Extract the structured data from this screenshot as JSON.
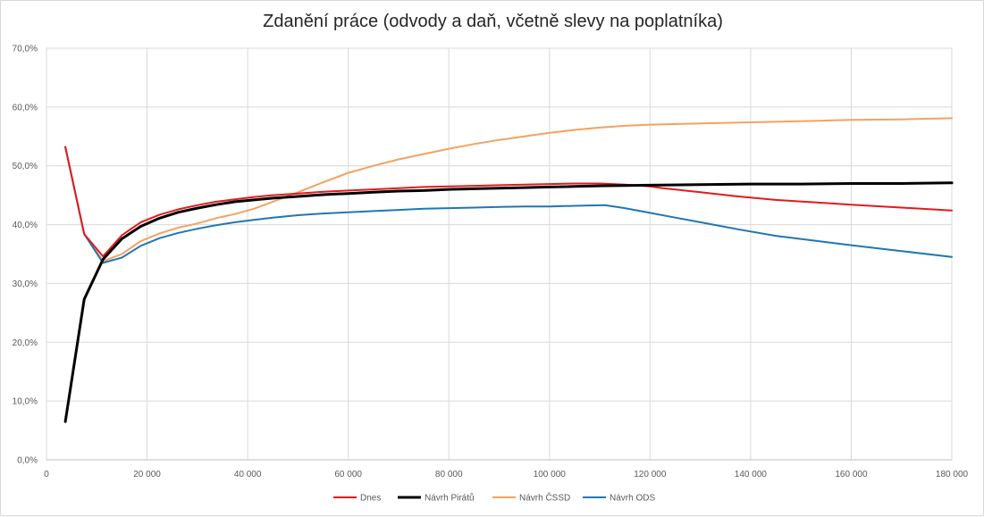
{
  "chart_data": {
    "type": "line",
    "title": "Zdanění práce (odvody a daň, včetně slevy na poplatníka)",
    "xlabel": "",
    "ylabel": "",
    "xlim": [
      0,
      180000
    ],
    "ylim": [
      0,
      70
    ],
    "x_ticks": [
      0,
      20000,
      40000,
      60000,
      80000,
      100000,
      120000,
      140000,
      160000,
      180000
    ],
    "x_tick_labels": [
      "0",
      "20 000",
      "40 000",
      "60 000",
      "80 000",
      "100 000",
      "120 000",
      "140 000",
      "160 000",
      "180 000"
    ],
    "y_ticks": [
      0,
      10,
      20,
      30,
      40,
      50,
      60,
      70
    ],
    "y_tick_labels": [
      "0,0%",
      "10,0%",
      "20,0%",
      "30,0%",
      "40,0%",
      "50,0%",
      "60,0%",
      "70,0%"
    ],
    "grid": "both",
    "legend_position": "bottom",
    "series": [
      {
        "name": "Dnes",
        "color": "#e31a1c",
        "points": [
          [
            3750,
            53.2
          ],
          [
            7500,
            38.4
          ],
          [
            11250,
            34.6
          ],
          [
            15000,
            38.2
          ],
          [
            18750,
            40.4
          ],
          [
            22500,
            41.7
          ],
          [
            26250,
            42.6
          ],
          [
            30000,
            43.3
          ],
          [
            33750,
            43.9
          ],
          [
            37500,
            44.3
          ],
          [
            41250,
            44.7
          ],
          [
            45000,
            45.0
          ],
          [
            50000,
            45.3
          ],
          [
            55000,
            45.6
          ],
          [
            60000,
            45.8
          ],
          [
            65000,
            46.0
          ],
          [
            70000,
            46.2
          ],
          [
            75000,
            46.4
          ],
          [
            80000,
            46.5
          ],
          [
            85000,
            46.6
          ],
          [
            90000,
            46.7
          ],
          [
            95000,
            46.8
          ],
          [
            100000,
            46.9
          ],
          [
            105000,
            47.0
          ],
          [
            110000,
            47.0
          ],
          [
            115000,
            46.8
          ],
          [
            120000,
            46.5
          ],
          [
            122500,
            46.2
          ],
          [
            130000,
            45.5
          ],
          [
            137500,
            44.8
          ],
          [
            145000,
            44.2
          ],
          [
            152500,
            43.8
          ],
          [
            160000,
            43.4
          ],
          [
            170000,
            42.9
          ],
          [
            180000,
            42.4
          ]
        ]
      },
      {
        "name": "Návrh Pirátů",
        "color": "#000000",
        "points": [
          [
            3750,
            6.5
          ],
          [
            7500,
            27.3
          ],
          [
            11250,
            34.1
          ],
          [
            15000,
            37.6
          ],
          [
            18750,
            39.7
          ],
          [
            22500,
            41.1
          ],
          [
            26250,
            42.1
          ],
          [
            30000,
            42.8
          ],
          [
            33750,
            43.4
          ],
          [
            37500,
            43.9
          ],
          [
            41250,
            44.2
          ],
          [
            45000,
            44.5
          ],
          [
            50000,
            44.8
          ],
          [
            55000,
            45.1
          ],
          [
            60000,
            45.3
          ],
          [
            65000,
            45.5
          ],
          [
            70000,
            45.7
          ],
          [
            75000,
            45.8
          ],
          [
            80000,
            46.0
          ],
          [
            85000,
            46.1
          ],
          [
            90000,
            46.2
          ],
          [
            95000,
            46.3
          ],
          [
            100000,
            46.4
          ],
          [
            105000,
            46.5
          ],
          [
            110000,
            46.6
          ],
          [
            120000,
            46.7
          ],
          [
            130000,
            46.8
          ],
          [
            140000,
            46.9
          ],
          [
            150000,
            46.9
          ],
          [
            160000,
            47.0
          ],
          [
            170000,
            47.0
          ],
          [
            180000,
            47.1
          ]
        ]
      },
      {
        "name": "Návrh ČSSD",
        "color": "#f4a261",
        "points": [
          [
            3750,
            53.2
          ],
          [
            7500,
            38.4
          ],
          [
            11250,
            33.8
          ],
          [
            15000,
            35.0
          ],
          [
            18750,
            37.2
          ],
          [
            22500,
            38.5
          ],
          [
            26250,
            39.5
          ],
          [
            30000,
            40.2
          ],
          [
            33750,
            41.1
          ],
          [
            37500,
            41.8
          ],
          [
            41250,
            42.7
          ],
          [
            45000,
            43.9
          ],
          [
            50000,
            45.5
          ],
          [
            55000,
            47.2
          ],
          [
            60000,
            48.8
          ],
          [
            65000,
            50.0
          ],
          [
            70000,
            51.1
          ],
          [
            75000,
            52.0
          ],
          [
            80000,
            52.9
          ],
          [
            85000,
            53.7
          ],
          [
            90000,
            54.4
          ],
          [
            95000,
            55.0
          ],
          [
            100000,
            55.6
          ],
          [
            105000,
            56.1
          ],
          [
            110000,
            56.5
          ],
          [
            115000,
            56.8
          ],
          [
            120000,
            57.0
          ],
          [
            130000,
            57.2
          ],
          [
            140000,
            57.4
          ],
          [
            150000,
            57.6
          ],
          [
            160000,
            57.8
          ],
          [
            170000,
            57.9
          ],
          [
            180000,
            58.1
          ]
        ]
      },
      {
        "name": "Návrh ODS",
        "color": "#1f77b4",
        "points": [
          [
            3750,
            53.2
          ],
          [
            7500,
            38.4
          ],
          [
            11250,
            33.5
          ],
          [
            15000,
            34.4
          ],
          [
            18750,
            36.4
          ],
          [
            22500,
            37.7
          ],
          [
            26250,
            38.6
          ],
          [
            30000,
            39.3
          ],
          [
            33750,
            39.9
          ],
          [
            37500,
            40.4
          ],
          [
            41250,
            40.8
          ],
          [
            45000,
            41.2
          ],
          [
            50000,
            41.6
          ],
          [
            55000,
            41.9
          ],
          [
            60000,
            42.1
          ],
          [
            65000,
            42.3
          ],
          [
            70000,
            42.5
          ],
          [
            75000,
            42.7
          ],
          [
            80000,
            42.8
          ],
          [
            85000,
            42.9
          ],
          [
            90000,
            43.0
          ],
          [
            95000,
            43.1
          ],
          [
            100000,
            43.1
          ],
          [
            105000,
            43.2
          ],
          [
            111000,
            43.3
          ],
          [
            115000,
            42.8
          ],
          [
            120000,
            42.0
          ],
          [
            125000,
            41.2
          ],
          [
            130000,
            40.4
          ],
          [
            137500,
            39.2
          ],
          [
            145000,
            38.1
          ],
          [
            152500,
            37.3
          ],
          [
            160000,
            36.5
          ],
          [
            170000,
            35.5
          ],
          [
            180000,
            34.5
          ]
        ]
      }
    ]
  }
}
